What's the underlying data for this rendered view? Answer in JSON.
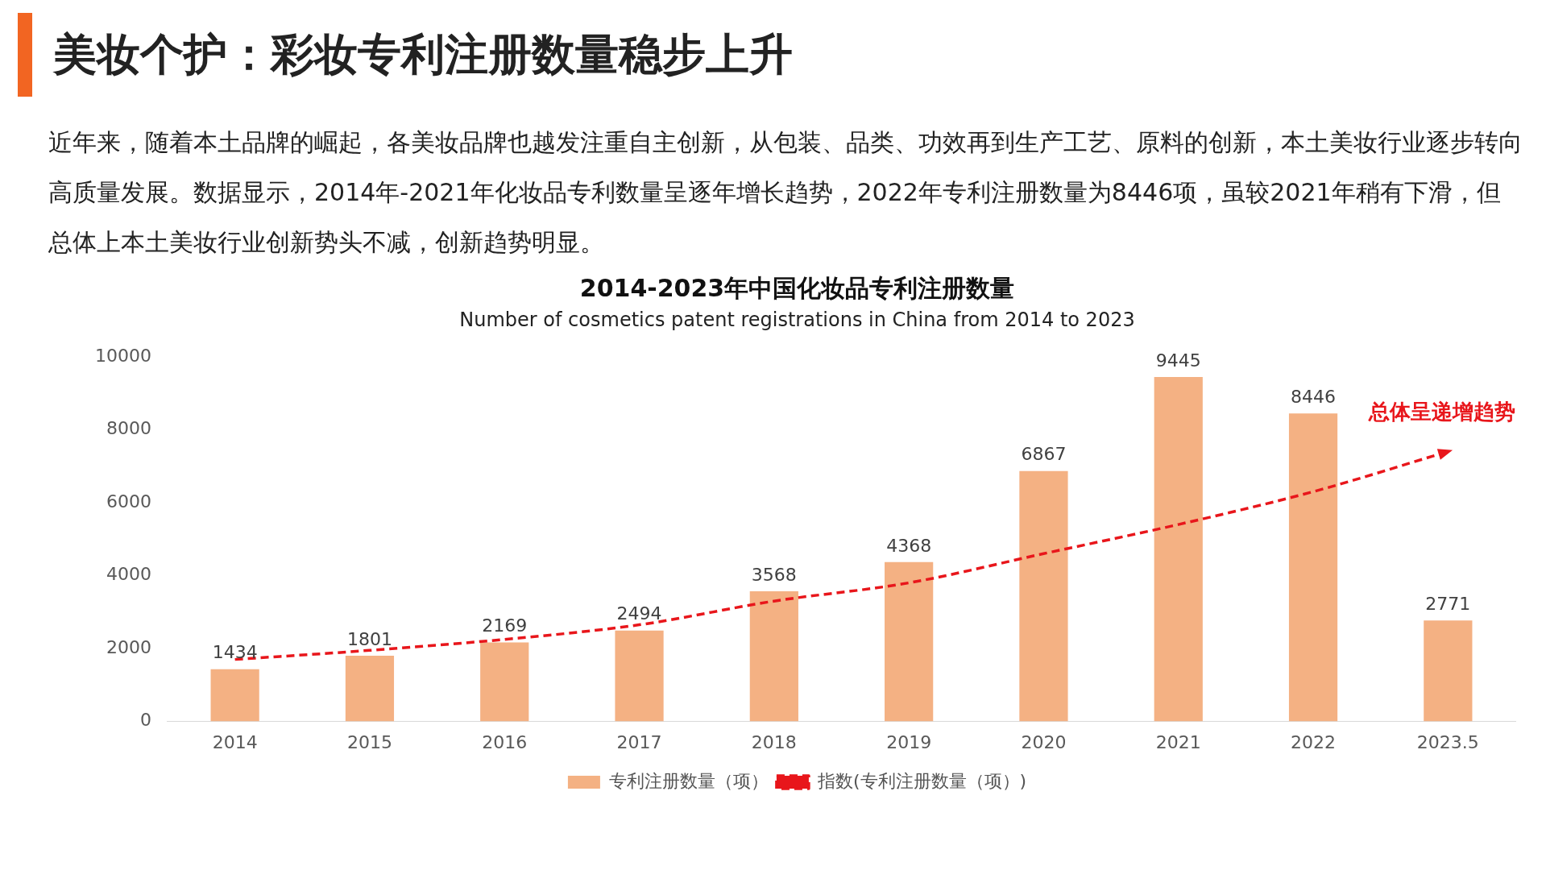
{
  "chart_data": {
    "type": "bar",
    "title": "2014-2023年中国化妆品专利注册数量",
    "subtitle": "Number of cosmetics patent registrations in China from 2014 to 2023",
    "annotations": [
      "美妆个护：彩妆专利注册数量稳步上升",
      "近年来，随着本土品牌的崛起，各美妆品牌也越发注重自主创新，从包装、品类、功效再到生产工艺、原料的创新，本土美妆行业逐步转向高质量发展。数据显示，2014年-2021年化妆品专利数量呈逐年增长趋势，2022年专利注册数量为8446项，虽较2021年稍有下滑，但总体上本土美妆行业创新势头不减，创新趋势明显。",
      "总体呈递增趋势"
    ],
    "categories": [
      "2014",
      "2015",
      "2016",
      "2017",
      "2018",
      "2019",
      "2020",
      "2021",
      "2022",
      "2023.5"
    ],
    "series": [
      {
        "name": "专利注册数量（项）",
        "color": "#f4b183",
        "values": [
          1434,
          1801,
          2169,
          2494,
          3568,
          4368,
          6867,
          9445,
          8446,
          2771
        ],
        "value_labels": [
          "1434",
          "1801",
          "2169",
          "2494",
          "3568",
          "4368",
          "6867",
          "9445",
          "8446",
          "2771"
        ]
      },
      {
        "name": "指数(专利注册数量（项）)",
        "type": "line",
        "color": "#e8161b",
        "line_style": "dashed",
        "marker": "none",
        "values": [
          1700,
          1950,
          2250,
          2650,
          3300,
          3800,
          4600,
          5400,
          6300,
          7400
        ]
      }
    ],
    "ylim": [
      0,
      10000
    ],
    "yticks": [
      0,
      2000,
      4000,
      6000,
      8000,
      10000
    ],
    "grid": false,
    "legend": "bottom"
  }
}
